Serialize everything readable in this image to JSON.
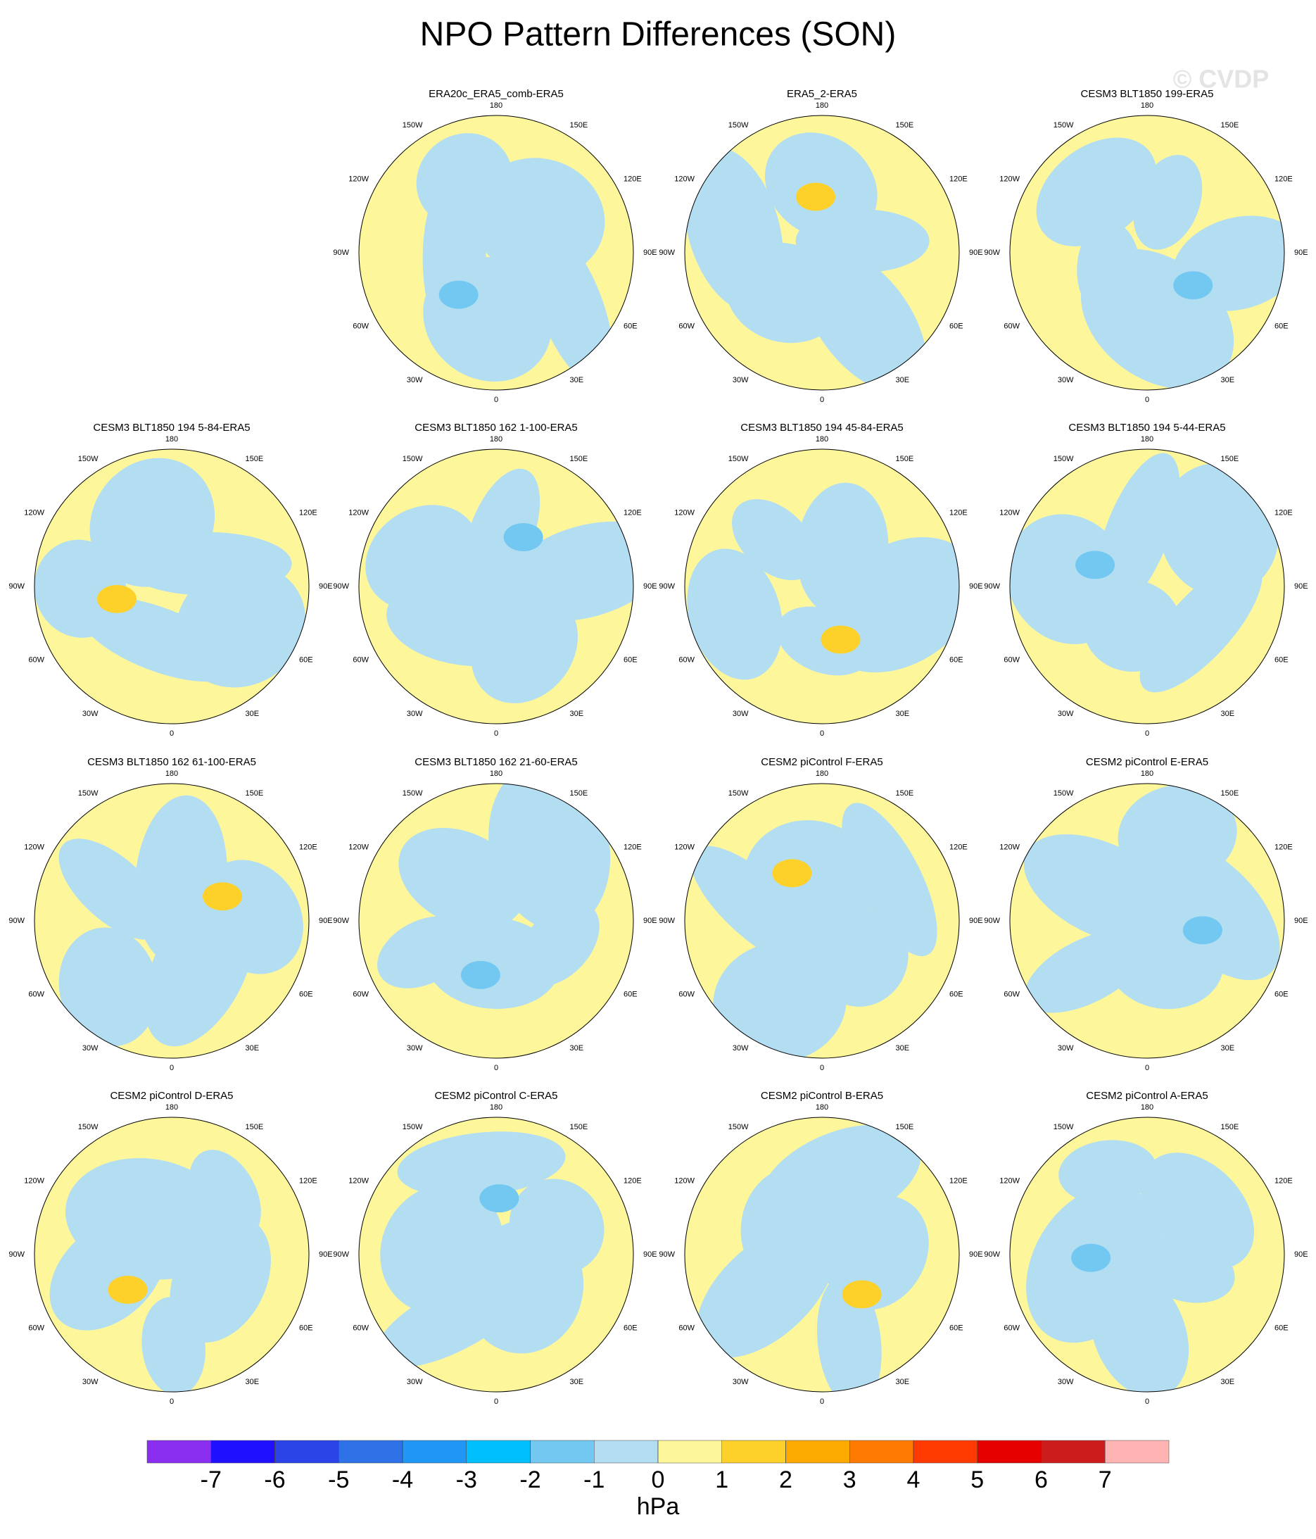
{
  "chart_data": {
    "type": "polar-map-panels",
    "title": "NPO Pattern Differences (SON)",
    "watermark": "© CVDP",
    "panels": [
      null,
      "ERA20c_ERA5_comb-ERA5",
      "ERA5_2-ERA5",
      "CESM3 BLT1850 199-ERA5",
      "CESM3 BLT1850 194 5-84-ERA5",
      "CESM3 BLT1850 162 1-100-ERA5",
      "CESM3 BLT1850 194 45-84-ERA5",
      "CESM3 BLT1850 194 5-44-ERA5",
      "CESM3 BLT1850 162 61-100-ERA5",
      "CESM3 BLT1850 162 21-60-ERA5",
      "CESM2 piControl F-ERA5",
      "CESM2 piControl E-ERA5",
      "CESM2 piControl D-ERA5",
      "CESM2 piControl C-ERA5",
      "CESM2 piControl B-ERA5",
      "CESM2 piControl A-ERA5"
    ],
    "longitude_labels": [
      "180",
      "150E",
      "120E",
      "90E",
      "60E",
      "30E",
      "0",
      "30W",
      "60W",
      "90W",
      "120W",
      "150W"
    ],
    "colorbar": {
      "label": "hPa",
      "levels": [
        -7,
        -6,
        -5,
        -4,
        -3,
        -2,
        -1,
        0,
        1,
        2,
        3,
        4,
        5,
        6,
        7
      ],
      "colors": [
        "#8a2ff0",
        "#1f10ff",
        "#2a44e8",
        "#2f72e8",
        "#2197f5",
        "#00bfff",
        "#72c8f0",
        "#b3def2",
        "#fef69b",
        "#fdd12a",
        "#fcaa00",
        "#ff7a00",
        "#ff3a00",
        "#e60000",
        "#cc1c1c",
        "#ffb4b4"
      ]
    }
  }
}
